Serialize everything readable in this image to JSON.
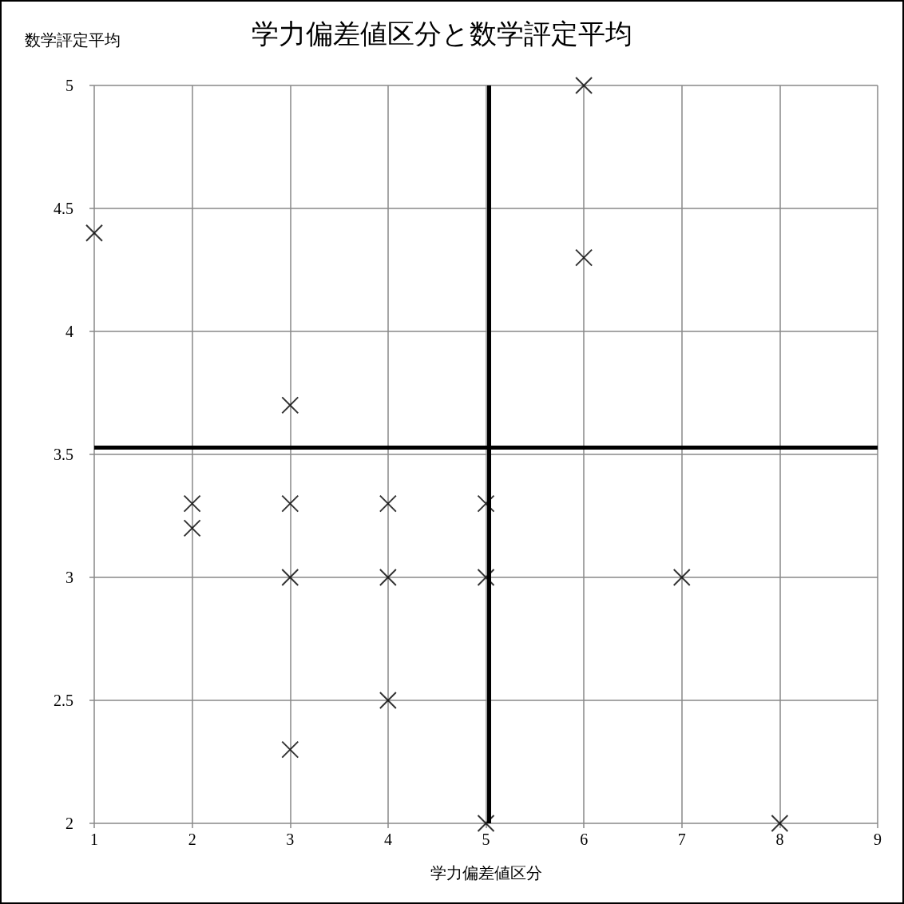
{
  "chart_data": {
    "type": "scatter",
    "title": "学力偏差値区分と数学評定平均",
    "xlabel": "学力偏差値区分",
    "ylabel": "数学評定平均",
    "x": [
      1,
      2,
      2,
      3,
      3,
      3,
      3,
      4,
      4,
      4,
      5,
      5,
      5,
      6,
      6,
      7,
      8
    ],
    "values": [
      4.4,
      3.3,
      3.2,
      3.7,
      3.3,
      3.0,
      2.3,
      3.3,
      3.0,
      2.5,
      3.3,
      3.0,
      2.0,
      5.0,
      4.3,
      3.0,
      2.0
    ],
    "color": "#000000",
    "marker": "cross",
    "xlim": [
      1,
      9
    ],
    "xticks": [
      1,
      2,
      3,
      4,
      5,
      6,
      7,
      8,
      9
    ],
    "ylim": [
      2,
      5
    ],
    "yticks": [
      2,
      2.5,
      3,
      3.5,
      4,
      4.5,
      5
    ],
    "grid": true,
    "ref_lines": [
      {
        "axis": "x",
        "value": 5.03,
        "color": "#000000",
        "line_style": "solid"
      },
      {
        "axis": "y",
        "value": 3.53,
        "color": "#000000",
        "line_style": "solid"
      }
    ]
  }
}
